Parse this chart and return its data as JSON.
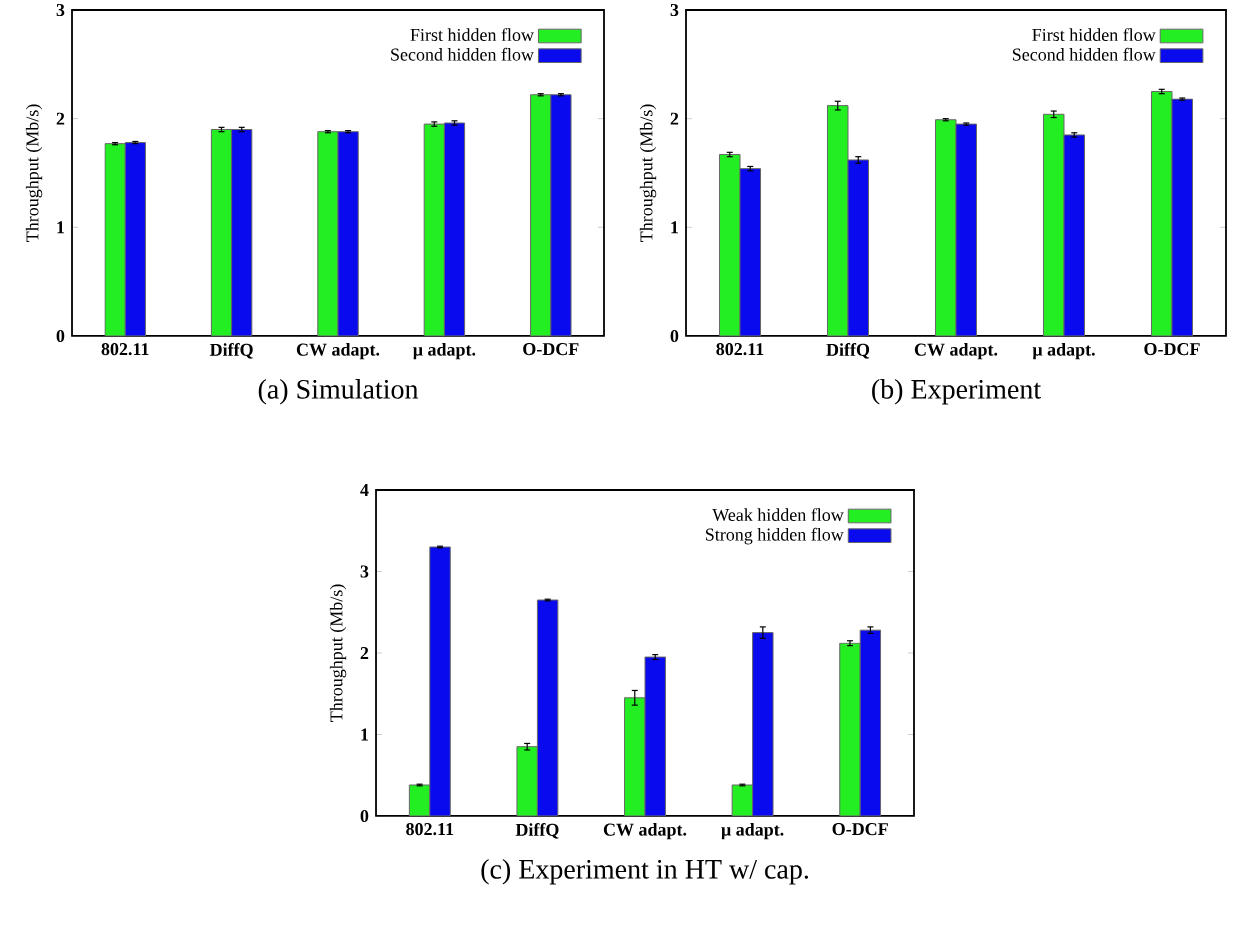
{
  "chart_data": [
    {
      "type": "bar",
      "title": "(a) Simulation",
      "ylabel": "Throughput (Mb/s)",
      "categories": [
        "802.11",
        "DiffQ",
        "CW adapt.",
        "μ adapt.",
        "O-DCF"
      ],
      "ylim": [
        0,
        3
      ],
      "yticks": [
        0,
        1,
        2,
        3
      ],
      "legend": "top right",
      "series": [
        {
          "name": "First hidden flow",
          "color": "#22ee22",
          "values": [
            1.77,
            1.9,
            1.88,
            1.95,
            2.22
          ],
          "errors": [
            0.01,
            0.02,
            0.01,
            0.02,
            0.01
          ]
        },
        {
          "name": "Second hidden flow",
          "color": "#0a0aee",
          "values": [
            1.78,
            1.9,
            1.88,
            1.96,
            2.22
          ],
          "errors": [
            0.01,
            0.02,
            0.01,
            0.02,
            0.01
          ]
        }
      ]
    },
    {
      "type": "bar",
      "title": "(b) Experiment",
      "ylabel": "Throughput (Mb/s)",
      "categories": [
        "802.11",
        "DiffQ",
        "CW adapt.",
        "μ adapt.",
        "O-DCF"
      ],
      "ylim": [
        0,
        3
      ],
      "yticks": [
        0,
        1,
        2,
        3
      ],
      "legend": "top right",
      "series": [
        {
          "name": "First hidden flow",
          "color": "#22ee22",
          "values": [
            1.67,
            2.12,
            1.99,
            2.04,
            2.25
          ],
          "errors": [
            0.02,
            0.04,
            0.01,
            0.03,
            0.02
          ]
        },
        {
          "name": "Second hidden flow",
          "color": "#0a0aee",
          "values": [
            1.54,
            1.62,
            1.95,
            1.85,
            2.18
          ],
          "errors": [
            0.02,
            0.03,
            0.01,
            0.02,
            0.01
          ]
        }
      ]
    },
    {
      "type": "bar",
      "title": "(c) Experiment in HT w/ cap.",
      "ylabel": "Throughput (Mb/s)",
      "categories": [
        "802.11",
        "DiffQ",
        "CW adapt.",
        "μ adapt.",
        "O-DCF"
      ],
      "ylim": [
        0,
        4
      ],
      "yticks": [
        0,
        1,
        2,
        3,
        4
      ],
      "legend": "top right",
      "series": [
        {
          "name": "Weak hidden flow",
          "color": "#22ee22",
          "values": [
            0.38,
            0.85,
            1.45,
            0.38,
            2.12
          ],
          "errors": [
            0.01,
            0.04,
            0.09,
            0.01,
            0.03
          ]
        },
        {
          "name": "Strong hidden flow",
          "color": "#0a0aee",
          "values": [
            3.3,
            2.65,
            1.95,
            2.25,
            2.28
          ],
          "errors": [
            0.01,
            0.01,
            0.03,
            0.07,
            0.04
          ]
        }
      ]
    }
  ]
}
